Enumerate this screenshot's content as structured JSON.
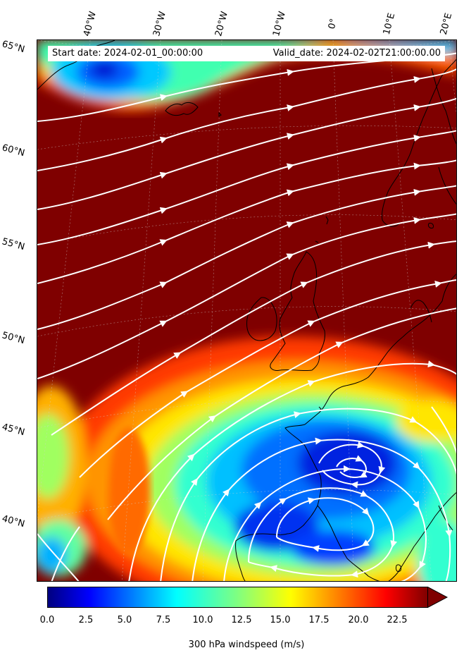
{
  "header": {
    "start_label": "Start date: 2024-02-01_00:00:00",
    "valid_label": "Valid_date: 2024-02-02T21:00:00.00"
  },
  "longitude_labels": [
    "40°W",
    "30°W",
    "20°W",
    "10°W",
    "0°",
    "10°E",
    "20°E"
  ],
  "latitude_labels": [
    "65°N",
    "60°N",
    "55°N",
    "50°N",
    "45°N",
    "40°N"
  ],
  "colorbar": {
    "ticks": [
      "0.0",
      "2.5",
      "5.0",
      "7.5",
      "10.0",
      "12.5",
      "15.0",
      "17.5",
      "20.0",
      "22.5"
    ],
    "label": "300 hPa windspeed (m/s)",
    "min": 0,
    "max": 25,
    "extend": "max",
    "colormap": "jet"
  },
  "map": {
    "variable": "300 hPa wind speed with streamlines",
    "background_color": "#7f0000",
    "streamline_color": "#ffffff",
    "coastline_color": "#000000"
  }
}
